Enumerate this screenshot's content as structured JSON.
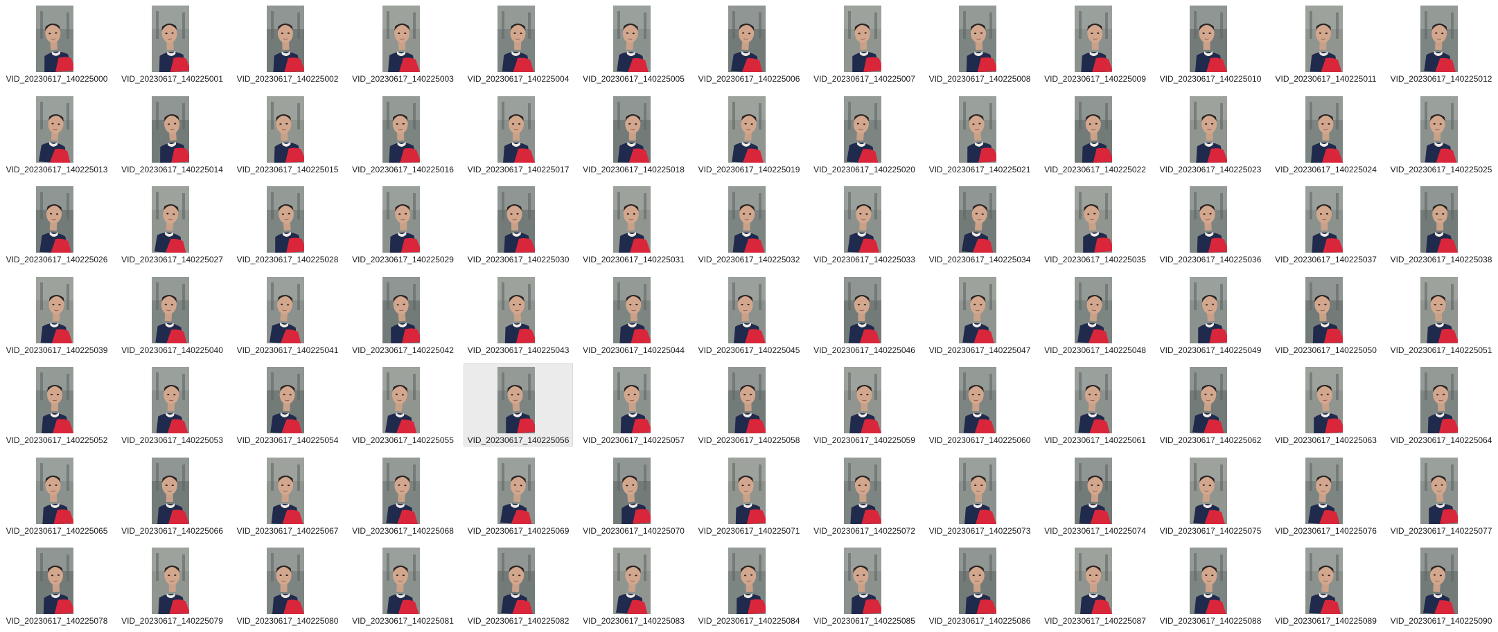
{
  "view": "large-icons",
  "selected_index": 56,
  "files": [
    {
      "name": "VID_20230617_140225000",
      "icon": "image-thumbnail"
    },
    {
      "name": "VID_20230617_140225001",
      "icon": "image-thumbnail"
    },
    {
      "name": "VID_20230617_140225002",
      "icon": "image-thumbnail"
    },
    {
      "name": "VID_20230617_140225003",
      "icon": "image-thumbnail"
    },
    {
      "name": "VID_20230617_140225004",
      "icon": "image-thumbnail"
    },
    {
      "name": "VID_20230617_140225005",
      "icon": "image-thumbnail"
    },
    {
      "name": "VID_20230617_140225006",
      "icon": "image-thumbnail"
    },
    {
      "name": "VID_20230617_140225007",
      "icon": "image-thumbnail"
    },
    {
      "name": "VID_20230617_140225008",
      "icon": "image-thumbnail"
    },
    {
      "name": "VID_20230617_140225009",
      "icon": "image-thumbnail"
    },
    {
      "name": "VID_20230617_140225010",
      "icon": "image-thumbnail"
    },
    {
      "name": "VID_20230617_140225011",
      "icon": "image-thumbnail"
    },
    {
      "name": "VID_20230617_140225012",
      "icon": "image-thumbnail"
    },
    {
      "name": "VID_20230617_140225013",
      "icon": "image-thumbnail"
    },
    {
      "name": "VID_20230617_140225014",
      "icon": "image-thumbnail"
    },
    {
      "name": "VID_20230617_140225015",
      "icon": "image-thumbnail"
    },
    {
      "name": "VID_20230617_140225016",
      "icon": "image-thumbnail"
    },
    {
      "name": "VID_20230617_140225017",
      "icon": "image-thumbnail"
    },
    {
      "name": "VID_20230617_140225018",
      "icon": "image-thumbnail"
    },
    {
      "name": "VID_20230617_140225019",
      "icon": "image-thumbnail"
    },
    {
      "name": "VID_20230617_140225020",
      "icon": "image-thumbnail"
    },
    {
      "name": "VID_20230617_140225021",
      "icon": "image-thumbnail"
    },
    {
      "name": "VID_20230617_140225022",
      "icon": "image-thumbnail"
    },
    {
      "name": "VID_20230617_140225023",
      "icon": "image-thumbnail"
    },
    {
      "name": "VID_20230617_140225024",
      "icon": "image-thumbnail"
    },
    {
      "name": "VID_20230617_140225025",
      "icon": "image-thumbnail"
    },
    {
      "name": "VID_20230617_140225026",
      "icon": "image-thumbnail"
    },
    {
      "name": "VID_20230617_140225027",
      "icon": "image-thumbnail"
    },
    {
      "name": "VID_20230617_140225028",
      "icon": "image-thumbnail"
    },
    {
      "name": "VID_20230617_140225029",
      "icon": "image-thumbnail"
    },
    {
      "name": "VID_20230617_140225030",
      "icon": "image-thumbnail"
    },
    {
      "name": "VID_20230617_140225031",
      "icon": "image-thumbnail"
    },
    {
      "name": "VID_20230617_140225032",
      "icon": "image-thumbnail"
    },
    {
      "name": "VID_20230617_140225033",
      "icon": "image-thumbnail"
    },
    {
      "name": "VID_20230617_140225034",
      "icon": "image-thumbnail"
    },
    {
      "name": "VID_20230617_140225035",
      "icon": "image-thumbnail"
    },
    {
      "name": "VID_20230617_140225036",
      "icon": "image-thumbnail"
    },
    {
      "name": "VID_20230617_140225037",
      "icon": "image-thumbnail"
    },
    {
      "name": "VID_20230617_140225038",
      "icon": "image-thumbnail"
    },
    {
      "name": "VID_20230617_140225039",
      "icon": "image-thumbnail"
    },
    {
      "name": "VID_20230617_140225040",
      "icon": "image-thumbnail"
    },
    {
      "name": "VID_20230617_140225041",
      "icon": "image-thumbnail"
    },
    {
      "name": "VID_20230617_140225042",
      "icon": "image-thumbnail"
    },
    {
      "name": "VID_20230617_140225043",
      "icon": "image-thumbnail"
    },
    {
      "name": "VID_20230617_140225044",
      "icon": "image-thumbnail"
    },
    {
      "name": "VID_20230617_140225045",
      "icon": "image-thumbnail"
    },
    {
      "name": "VID_20230617_140225046",
      "icon": "image-thumbnail"
    },
    {
      "name": "VID_20230617_140225047",
      "icon": "image-thumbnail"
    },
    {
      "name": "VID_20230617_140225048",
      "icon": "image-thumbnail"
    },
    {
      "name": "VID_20230617_140225049",
      "icon": "image-thumbnail"
    },
    {
      "name": "VID_20230617_140225050",
      "icon": "image-thumbnail"
    },
    {
      "name": "VID_20230617_140225051",
      "icon": "image-thumbnail"
    },
    {
      "name": "VID_20230617_140225052",
      "icon": "image-thumbnail"
    },
    {
      "name": "VID_20230617_140225053",
      "icon": "image-thumbnail"
    },
    {
      "name": "VID_20230617_140225054",
      "icon": "image-thumbnail"
    },
    {
      "name": "VID_20230617_140225055",
      "icon": "image-thumbnail"
    },
    {
      "name": "VID_20230617_140225056",
      "icon": "image-thumbnail"
    },
    {
      "name": "VID_20230617_140225057",
      "icon": "image-thumbnail"
    },
    {
      "name": "VID_20230617_140225058",
      "icon": "image-thumbnail"
    },
    {
      "name": "VID_20230617_140225059",
      "icon": "image-thumbnail"
    },
    {
      "name": "VID_20230617_140225060",
      "icon": "image-thumbnail"
    },
    {
      "name": "VID_20230617_140225061",
      "icon": "image-thumbnail"
    },
    {
      "name": "VID_20230617_140225062",
      "icon": "image-thumbnail"
    },
    {
      "name": "VID_20230617_140225063",
      "icon": "image-thumbnail"
    },
    {
      "name": "VID_20230617_140225064",
      "icon": "image-thumbnail"
    },
    {
      "name": "VID_20230617_140225065",
      "icon": "image-thumbnail"
    },
    {
      "name": "VID_20230617_140225066",
      "icon": "image-thumbnail"
    },
    {
      "name": "VID_20230617_140225067",
      "icon": "image-thumbnail"
    },
    {
      "name": "VID_20230617_140225068",
      "icon": "image-thumbnail"
    },
    {
      "name": "VID_20230617_140225069",
      "icon": "image-thumbnail"
    },
    {
      "name": "VID_20230617_140225070",
      "icon": "image-thumbnail"
    },
    {
      "name": "VID_20230617_140225071",
      "icon": "image-thumbnail"
    },
    {
      "name": "VID_20230617_140225072",
      "icon": "image-thumbnail"
    },
    {
      "name": "VID_20230617_140225073",
      "icon": "image-thumbnail"
    },
    {
      "name": "VID_20230617_140225074",
      "icon": "image-thumbnail"
    },
    {
      "name": "VID_20230617_140225075",
      "icon": "image-thumbnail"
    },
    {
      "name": "VID_20230617_140225076",
      "icon": "image-thumbnail"
    },
    {
      "name": "VID_20230617_140225077",
      "icon": "image-thumbnail"
    },
    {
      "name": "VID_20230617_140225078",
      "icon": "image-thumbnail"
    },
    {
      "name": "VID_20230617_140225079",
      "icon": "image-thumbnail"
    },
    {
      "name": "VID_20230617_140225080",
      "icon": "image-thumbnail"
    },
    {
      "name": "VID_20230617_140225081",
      "icon": "image-thumbnail"
    },
    {
      "name": "VID_20230617_140225082",
      "icon": "image-thumbnail"
    },
    {
      "name": "VID_20230617_140225083",
      "icon": "image-thumbnail"
    },
    {
      "name": "VID_20230617_140225084",
      "icon": "image-thumbnail"
    },
    {
      "name": "VID_20230617_140225085",
      "icon": "image-thumbnail"
    },
    {
      "name": "VID_20230617_140225086",
      "icon": "image-thumbnail"
    },
    {
      "name": "VID_20230617_140225087",
      "icon": "image-thumbnail"
    },
    {
      "name": "VID_20230617_140225088",
      "icon": "image-thumbnail"
    },
    {
      "name": "VID_20230617_140225089",
      "icon": "image-thumbnail"
    },
    {
      "name": "VID_20230617_140225090",
      "icon": "image-thumbnail"
    }
  ],
  "colors": {
    "background": "#ffffff",
    "selection": "#ebebeb",
    "label_text": "#1a1a1a",
    "shirt_red": "#d9263a",
    "shirt_navy": "#1f2a4d"
  }
}
